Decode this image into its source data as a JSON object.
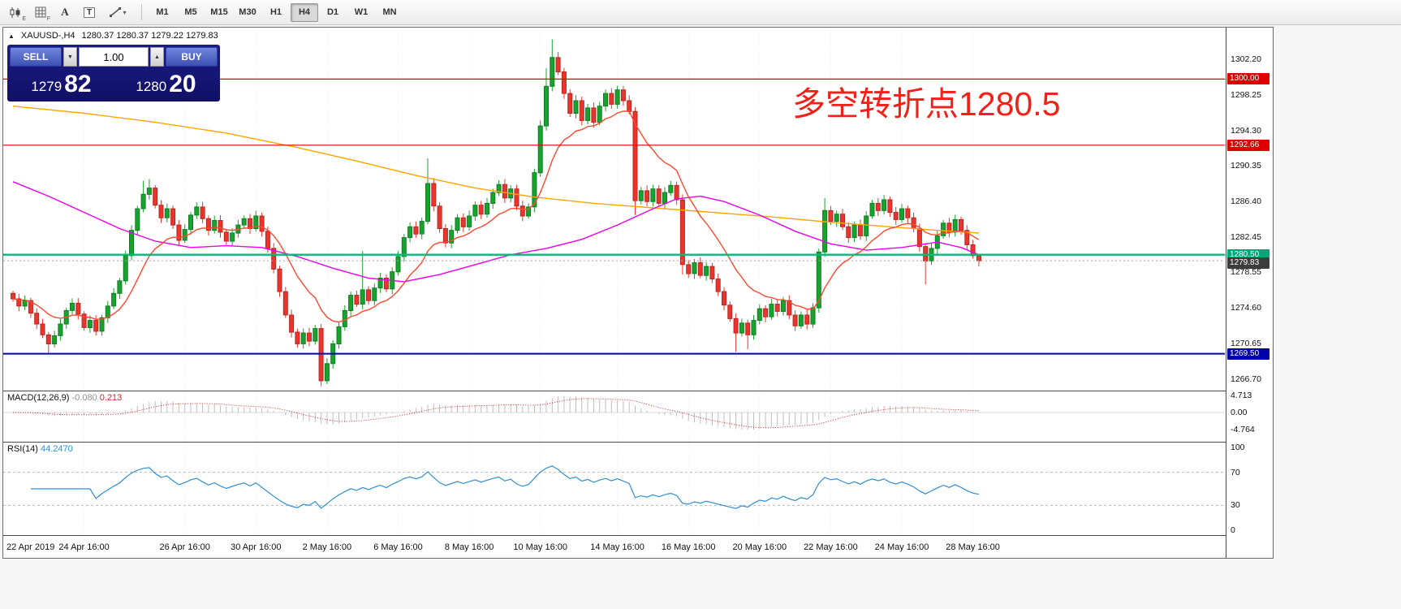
{
  "toolbar": {
    "icons": [
      {
        "name": "candlestick-chart-icon",
        "sub": "E"
      },
      {
        "name": "grid-icon",
        "sub": "F"
      },
      {
        "name": "text-tool-icon",
        "glyph": "A"
      },
      {
        "name": "label-tool-icon",
        "glyph": "T"
      },
      {
        "name": "draw-tools-icon",
        "caret": "▾"
      }
    ],
    "timeframes": [
      "M1",
      "M5",
      "M15",
      "M30",
      "H1",
      "H4",
      "D1",
      "W1",
      "MN"
    ],
    "active_timeframe": "H4"
  },
  "window": {
    "toggle_icon": "▲",
    "symbol_header": "XAUUSD-,H4",
    "ohlc": "1280.37 1280.37 1279.22 1279.83"
  },
  "trade_panel": {
    "sell_label": "SELL",
    "buy_label": "BUY",
    "volume": "1.00",
    "spinner_down": "▼",
    "spinner_up": "▲",
    "sell_price": {
      "big": "1279",
      "pips": "82"
    },
    "buy_price": {
      "big": "1280",
      "pips": "20"
    }
  },
  "annotation": {
    "text": "多空转折点1280.5",
    "color": "#f32017"
  },
  "price_axis": {
    "labels": [
      {
        "text": "1302.20",
        "p": 1302.2
      },
      {
        "text": "1298.25",
        "p": 1298.25
      },
      {
        "text": "1294.30",
        "p": 1294.3
      },
      {
        "text": "1290.35",
        "p": 1290.35
      },
      {
        "text": "1286.40",
        "p": 1286.4
      },
      {
        "text": "1282.45",
        "p": 1282.45
      },
      {
        "text": "1278.55",
        "p": 1278.55
      },
      {
        "text": "1274.60",
        "p": 1274.6
      },
      {
        "text": "1270.65",
        "p": 1270.65
      },
      {
        "text": "1266.70",
        "p": 1266.7
      }
    ],
    "badges": [
      {
        "text": "1300.00",
        "p": 1300.0,
        "bg": "#dd0000"
      },
      {
        "text": "1292.66",
        "p": 1292.66,
        "bg": "#dd0000"
      },
      {
        "text": "1280.50",
        "p": 1280.5,
        "bg": "#00a878"
      },
      {
        "text": "1279.83",
        "p": 1279.55,
        "bg": "#3c3c3c"
      },
      {
        "text": "1269.50",
        "p": 1269.5,
        "bg": "#0000aa"
      }
    ]
  },
  "time_axis": {
    "labels": [
      {
        "text": "22 Apr 2019",
        "i": 0
      },
      {
        "text": "24 Apr 16:00",
        "i": 12
      },
      {
        "text": "26 Apr 16:00",
        "i": 29
      },
      {
        "text": "30 Apr 16:00",
        "i": 41
      },
      {
        "text": "2 May 16:00",
        "i": 53
      },
      {
        "text": "6 May 16:00",
        "i": 65
      },
      {
        "text": "8 May 16:00",
        "i": 77
      },
      {
        "text": "10 May 16:00",
        "i": 89
      },
      {
        "text": "14 May 16:00",
        "i": 102
      },
      {
        "text": "16 May 16:00",
        "i": 114
      },
      {
        "text": "20 May 16:00",
        "i": 126
      },
      {
        "text": "22 May 16:00",
        "i": 138
      },
      {
        "text": "24 May 16:00",
        "i": 150
      },
      {
        "text": "28 May 16:00",
        "i": 162
      }
    ]
  },
  "macd": {
    "name": "MACD(12,26,9)",
    "value": "-0.080",
    "signal": "0.213",
    "axis": [
      {
        "text": "4.713",
        "v": 4.713
      },
      {
        "text": "0.00",
        "v": 0
      },
      {
        "text": "-4.764",
        "v": -4.764
      }
    ]
  },
  "rsi": {
    "name": "RSI(14)",
    "value": "44.2470",
    "axis": [
      {
        "text": "100",
        "v": 100
      },
      {
        "text": "70",
        "v": 70
      },
      {
        "text": "30",
        "v": 30
      },
      {
        "text": "0",
        "v": 0
      }
    ]
  },
  "chart_data": {
    "type": "candlestick",
    "symbol": "XAUUSD-",
    "timeframe": "H4",
    "ohlc_current": {
      "o": 1280.37,
      "h": 1280.37,
      "l": 1279.22,
      "c": 1279.83
    },
    "first_open": 1276.2,
    "closes": [
      1275.6,
      1274.8,
      1275.4,
      1274.0,
      1272.8,
      1271.6,
      1270.6,
      1271.5,
      1272.8,
      1274.3,
      1275.1,
      1273.9,
      1272.4,
      1273.2,
      1272.0,
      1273.5,
      1274.8,
      1276.2,
      1277.6,
      1280.4,
      1283.2,
      1285.6,
      1287.2,
      1287.9,
      1286.0,
      1284.6,
      1285.6,
      1283.8,
      1282.1,
      1283.3,
      1284.9,
      1285.8,
      1284.5,
      1283.2,
      1284.3,
      1283.0,
      1282.0,
      1282.9,
      1283.8,
      1284.5,
      1283.4,
      1284.8,
      1283.1,
      1281.2,
      1278.9,
      1276.4,
      1273.8,
      1271.9,
      1270.6,
      1271.8,
      1270.9,
      1272.3,
      1266.5,
      1268.4,
      1270.6,
      1272.5,
      1274.3,
      1276.0,
      1275.0,
      1276.6,
      1275.4,
      1276.8,
      1277.9,
      1276.7,
      1278.6,
      1280.3,
      1282.4,
      1283.6,
      1282.8,
      1284.2,
      1288.4,
      1285.9,
      1283.4,
      1281.8,
      1283.2,
      1284.6,
      1283.6,
      1284.8,
      1286.0,
      1285.0,
      1286.2,
      1287.4,
      1288.3,
      1286.8,
      1287.8,
      1285.9,
      1284.8,
      1285.8,
      1289.6,
      1294.8,
      1299.2,
      1302.4,
      1300.8,
      1298.4,
      1296.2,
      1297.6,
      1295.4,
      1296.8,
      1295.2,
      1297.0,
      1298.4,
      1297.2,
      1298.8,
      1297.6,
      1296.4,
      1286.5,
      1287.6,
      1286.4,
      1287.8,
      1286.2,
      1287.4,
      1288.2,
      1286.6,
      1279.4,
      1278.4,
      1279.6,
      1278.2,
      1279.2,
      1277.8,
      1276.4,
      1274.9,
      1273.4,
      1271.8,
      1272.9,
      1271.6,
      1273.2,
      1274.5,
      1273.6,
      1275.0,
      1274.2,
      1275.4,
      1273.8,
      1272.6,
      1273.8,
      1272.8,
      1274.6,
      1280.8,
      1285.4,
      1284.2,
      1285.0,
      1283.6,
      1282.4,
      1283.8,
      1282.6,
      1284.8,
      1286.2,
      1285.4,
      1286.6,
      1285.2,
      1284.4,
      1285.6,
      1284.6,
      1283.4,
      1281.4,
      1279.8,
      1281.2,
      1282.6,
      1284.0,
      1283.0,
      1284.4,
      1283.2,
      1281.6,
      1280.4,
      1279.83
    ],
    "wick_overrides": {
      "6": [
        null,
        1269.6
      ],
      "22": [
        1288.7,
        null
      ],
      "23": [
        1288.9,
        null
      ],
      "52": [
        null,
        1265.9
      ],
      "59": [
        1280.9,
        null
      ],
      "70": [
        1291.2,
        null
      ],
      "90": [
        1301.2,
        null
      ],
      "91": [
        1304.4,
        null
      ],
      "105": [
        null,
        1284.9
      ],
      "113": [
        null,
        1278.3
      ],
      "122": [
        null,
        1269.7
      ],
      "124": [
        null,
        1270.0
      ],
      "137": [
        1286.8,
        null
      ],
      "154": [
        null,
        1277.2
      ],
      "163": [
        1280.6,
        1279.2
      ]
    },
    "hlines": [
      {
        "p": 1300.0,
        "color": "#e00000",
        "w": 1.2
      },
      {
        "p": 1292.66,
        "color": "#e00000",
        "w": 1.2
      },
      {
        "p": 1279.83,
        "color": "#a8a8a8",
        "w": 1,
        "dash": "2,3"
      },
      {
        "p": 1280.5,
        "color": "#00ba7a",
        "w": 2.4
      },
      {
        "p": 1269.5,
        "color": "#0000b0",
        "w": 2
      }
    ],
    "ma_orange": [
      [
        0,
        1297.0
      ],
      [
        12,
        1296.2
      ],
      [
        24,
        1295.2
      ],
      [
        36,
        1294.0
      ],
      [
        48,
        1292.4
      ],
      [
        58,
        1290.9
      ],
      [
        68,
        1289.3
      ],
      [
        78,
        1287.9
      ],
      [
        88,
        1286.9
      ],
      [
        98,
        1286.2
      ],
      [
        108,
        1285.7
      ],
      [
        118,
        1285.2
      ],
      [
        128,
        1284.7
      ],
      [
        138,
        1284.1
      ],
      [
        148,
        1283.6
      ],
      [
        156,
        1283.2
      ],
      [
        163,
        1282.9
      ]
    ],
    "ma_magenta": [
      [
        0,
        1288.6
      ],
      [
        6,
        1287.0
      ],
      [
        12,
        1285.2
      ],
      [
        18,
        1283.4
      ],
      [
        24,
        1282.0
      ],
      [
        30,
        1281.3
      ],
      [
        36,
        1281.5
      ],
      [
        42,
        1281.3
      ],
      [
        48,
        1280.3
      ],
      [
        54,
        1279.0
      ],
      [
        60,
        1277.9
      ],
      [
        66,
        1277.5
      ],
      [
        72,
        1278.3
      ],
      [
        78,
        1279.4
      ],
      [
        84,
        1280.5
      ],
      [
        90,
        1281.2
      ],
      [
        96,
        1282.2
      ],
      [
        102,
        1283.8
      ],
      [
        108,
        1285.6
      ],
      [
        112,
        1286.7
      ],
      [
        116,
        1287.0
      ],
      [
        120,
        1286.4
      ],
      [
        126,
        1284.9
      ],
      [
        132,
        1283.1
      ],
      [
        138,
        1281.7
      ],
      [
        144,
        1281.0
      ],
      [
        150,
        1281.3
      ],
      [
        156,
        1281.9
      ],
      [
        160,
        1281.3
      ],
      [
        163,
        1280.5
      ]
    ],
    "colors": {
      "bull": "#18a32e",
      "bull_border": "#0e7d22",
      "bear": "#e8352e",
      "bear_border": "#bf241d",
      "ma_slow": "#ffa500",
      "ma_mid": "#ee00ee",
      "ma_fast": "#ff4830",
      "macd_hist": "#bfbfbf",
      "macd_signal": "#e02020",
      "rsi_line": "#2f8fd5",
      "grid": "#efefef"
    }
  }
}
